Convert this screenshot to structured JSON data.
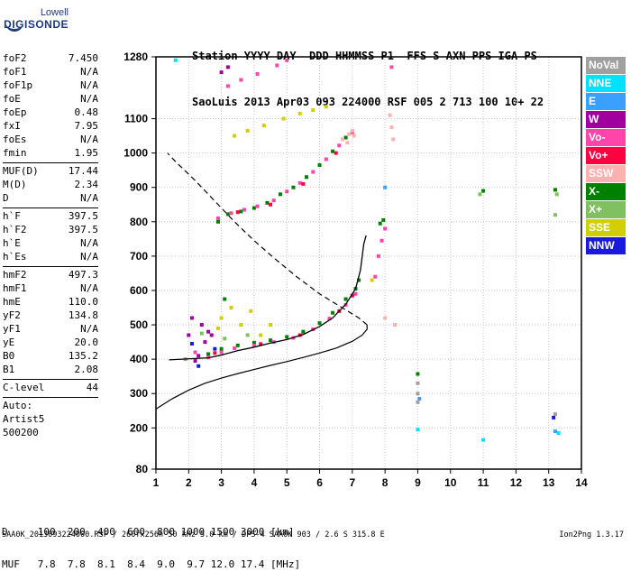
{
  "logo": {
    "line1": "Lowell",
    "line2": "DIGISONDE"
  },
  "header": {
    "line1": "Station YYYY DAY  DDD HHMMSS P1  FFS S AXN PPS IGA PS",
    "line2": "SaoLuis 2013 Apr03 093 224000 RSF 005 2 713 100 10+ 22"
  },
  "params": {
    "group1": [
      {
        "k": "foF2",
        "v": "7.450"
      },
      {
        "k": "foF1",
        "v": "N/A"
      },
      {
        "k": "foF1p",
        "v": "N/A"
      },
      {
        "k": "foE",
        "v": "N/A"
      },
      {
        "k": "foEp",
        "v": "0.48"
      },
      {
        "k": "fxI",
        "v": "7.95"
      },
      {
        "k": "foEs",
        "v": "N/A"
      },
      {
        "k": "fmin",
        "v": "1.95"
      }
    ],
    "group2": [
      {
        "k": "MUF(D)",
        "v": "17.44"
      },
      {
        "k": "M(D)",
        "v": "2.34"
      },
      {
        "k": "D",
        "v": "N/A"
      }
    ],
    "group3": [
      {
        "k": "h`F",
        "v": "397.5"
      },
      {
        "k": "h`F2",
        "v": "397.5"
      },
      {
        "k": "h`E",
        "v": "N/A"
      },
      {
        "k": "h`Es",
        "v": "N/A"
      }
    ],
    "group4": [
      {
        "k": "hmF2",
        "v": "497.3"
      },
      {
        "k": "hmF1",
        "v": "N/A"
      },
      {
        "k": "hmE",
        "v": "110.0"
      },
      {
        "k": "yF2",
        "v": "134.8"
      },
      {
        "k": "yF1",
        "v": "N/A"
      },
      {
        "k": "yE",
        "v": "20.0"
      },
      {
        "k": "B0",
        "v": "135.2"
      },
      {
        "k": "B1",
        "v": "2.08"
      }
    ],
    "group5": [
      {
        "k": "C-level",
        "v": "44"
      }
    ],
    "auto": [
      "Auto:",
      "Artist5",
      "500200"
    ]
  },
  "legend": [
    {
      "label": "NoVal",
      "color": "#a0a0a0"
    },
    {
      "label": "NNE",
      "color": "#00e0ff"
    },
    {
      "label": "E",
      "color": "#3aa0ff"
    },
    {
      "label": "W",
      "color": "#a000a0"
    },
    {
      "label": "Vo-",
      "color": "#ff44aa"
    },
    {
      "label": "Vo+",
      "color": "#ff0040"
    },
    {
      "label": "SSW",
      "color": "#ffb0b0"
    },
    {
      "label": "X-",
      "color": "#008000"
    },
    {
      "label": "X+",
      "color": "#80c060"
    },
    {
      "label": "SSE",
      "color": "#d0d000"
    },
    {
      "label": "NNW",
      "color": "#1a1adc"
    }
  ],
  "distance_table": {
    "line1": "D     100  200  400  600  800 1000 1500 3000 [km]",
    "line2": "MUF   7.8  7.8  8.1  8.4  9.0  9.7 12.0 17.4 [MHz]"
  },
  "footer": {
    "left": "SAA0K_2013093224000.RSF / 260fx256h 50 kHz 5.0 km / DPS-4 SAA0K 903 / 2.6 S 315.8 E",
    "right": "Ion2Png 1.3.17"
  },
  "chart_data": {
    "type": "scatter",
    "xlim": [
      1,
      14
    ],
    "ylim": [
      80,
      1280
    ],
    "x_ticks": [
      1,
      2,
      3,
      4,
      5,
      6,
      7,
      8,
      9,
      10,
      11,
      12,
      13,
      14
    ],
    "y_ticks": [
      80,
      200,
      300,
      400,
      500,
      600,
      700,
      800,
      900,
      1000,
      1100,
      1280
    ],
    "grid": true,
    "series": [
      {
        "name": "X-",
        "color": "#008000",
        "points": [
          [
            2.9,
            800
          ],
          [
            3.2,
            822
          ],
          [
            3.6,
            830
          ],
          [
            4.0,
            840
          ],
          [
            4.4,
            855
          ],
          [
            4.8,
            880
          ],
          [
            5.2,
            900
          ],
          [
            5.6,
            930
          ],
          [
            6.0,
            965
          ],
          [
            6.4,
            1005
          ],
          [
            6.8,
            1045
          ],
          [
            2.6,
            415
          ],
          [
            3.0,
            430
          ],
          [
            3.5,
            440
          ],
          [
            4.0,
            448
          ],
          [
            4.5,
            455
          ],
          [
            5.0,
            465
          ],
          [
            5.5,
            480
          ],
          [
            6.0,
            505
          ],
          [
            6.4,
            535
          ],
          [
            6.8,
            575
          ],
          [
            7.1,
            605
          ],
          [
            7.2,
            630
          ],
          [
            7.85,
            795
          ],
          [
            7.95,
            805
          ],
          [
            3.1,
            575
          ],
          [
            11.0,
            890
          ],
          [
            13.2,
            893
          ],
          [
            9.0,
            357
          ]
        ]
      },
      {
        "name": "Vo-",
        "color": "#ff44aa",
        "points": [
          [
            2.9,
            810
          ],
          [
            3.3,
            825
          ],
          [
            3.7,
            835
          ],
          [
            4.1,
            845
          ],
          [
            4.6,
            862
          ],
          [
            5.0,
            888
          ],
          [
            5.4,
            913
          ],
          [
            5.8,
            945
          ],
          [
            6.2,
            982
          ],
          [
            6.6,
            1022
          ],
          [
            7.0,
            1060
          ],
          [
            2.2,
            420
          ],
          [
            2.6,
            405
          ],
          [
            3.0,
            420
          ],
          [
            3.4,
            432
          ],
          [
            4.0,
            440
          ],
          [
            4.6,
            450
          ],
          [
            5.2,
            462
          ],
          [
            5.8,
            487
          ],
          [
            6.3,
            518
          ],
          [
            6.8,
            558
          ],
          [
            7.1,
            590
          ],
          [
            7.7,
            640
          ],
          [
            7.8,
            700
          ],
          [
            7.9,
            745
          ],
          [
            8.0,
            780
          ],
          [
            3.2,
            1195
          ],
          [
            3.6,
            1213
          ],
          [
            4.1,
            1230
          ],
          [
            4.7,
            1255
          ],
          [
            5.0,
            1270
          ],
          [
            8.2,
            1250
          ]
        ]
      },
      {
        "name": "Vo+",
        "color": "#ff0040",
        "points": [
          [
            3.5,
            828
          ],
          [
            4.5,
            850
          ],
          [
            5.5,
            910
          ],
          [
            6.5,
            1000
          ],
          [
            2.8,
            418
          ],
          [
            4.2,
            444
          ],
          [
            5.4,
            470
          ],
          [
            6.6,
            540
          ],
          [
            7.0,
            585
          ]
        ]
      },
      {
        "name": "SSW",
        "color": "#ffb0b0",
        "points": [
          [
            6.7,
            1040
          ],
          [
            6.9,
            1055
          ],
          [
            7.0,
            1065
          ],
          [
            7.05,
            1050
          ],
          [
            6.85,
            1030
          ],
          [
            8.15,
            1110
          ],
          [
            8.2,
            1075
          ],
          [
            8.25,
            1040
          ],
          [
            8.3,
            500
          ],
          [
            8.0,
            520
          ]
        ]
      },
      {
        "name": "W",
        "color": "#a000a0",
        "points": [
          [
            2.0,
            470
          ],
          [
            2.1,
            520
          ],
          [
            2.2,
            395
          ],
          [
            2.4,
            500
          ],
          [
            2.5,
            450
          ],
          [
            2.7,
            470
          ],
          [
            3.2,
            1250
          ],
          [
            3.0,
            1235
          ],
          [
            2.3,
            410
          ],
          [
            2.6,
            480
          ]
        ]
      },
      {
        "name": "SSE",
        "color": "#d0d000",
        "points": [
          [
            2.9,
            490
          ],
          [
            3.0,
            520
          ],
          [
            3.3,
            550
          ],
          [
            3.6,
            500
          ],
          [
            3.9,
            540
          ],
          [
            4.2,
            470
          ],
          [
            4.5,
            500
          ],
          [
            3.4,
            1050
          ],
          [
            3.8,
            1065
          ],
          [
            4.3,
            1080
          ],
          [
            4.9,
            1100
          ],
          [
            5.4,
            1115
          ],
          [
            5.8,
            1125
          ],
          [
            6.2,
            1135
          ],
          [
            7.6,
            630
          ]
        ]
      },
      {
        "name": "X+",
        "color": "#80c060",
        "points": [
          [
            2.4,
            475
          ],
          [
            3.1,
            460
          ],
          [
            3.8,
            470
          ],
          [
            10.9,
            880
          ],
          [
            13.2,
            820
          ],
          [
            13.25,
            880
          ]
        ]
      },
      {
        "name": "NNE",
        "color": "#00e0ff",
        "points": [
          [
            9.0,
            195
          ],
          [
            13.3,
            185
          ],
          [
            11.0,
            165
          ],
          [
            1.6,
            1270
          ]
        ]
      },
      {
        "name": "E",
        "color": "#3aa0ff",
        "points": [
          [
            13.2,
            190
          ],
          [
            8.0,
            900
          ],
          [
            9.05,
            285
          ]
        ]
      },
      {
        "name": "NoVal",
        "color": "#a0a0a0",
        "points": [
          [
            9.0,
            300
          ],
          [
            9.0,
            275
          ],
          [
            13.2,
            240
          ],
          [
            1.9,
            400
          ],
          [
            9.0,
            330
          ]
        ]
      },
      {
        "name": "NNW",
        "color": "#1a1adc",
        "points": [
          [
            2.1,
            445
          ],
          [
            2.3,
            380
          ],
          [
            2.8,
            430
          ],
          [
            13.15,
            230
          ]
        ]
      }
    ],
    "trace_virtual_height": [
      [
        1.4,
        398
      ],
      [
        1.8,
        400
      ],
      [
        2.2,
        402
      ],
      [
        2.6,
        404
      ],
      [
        3.0,
        412
      ],
      [
        3.5,
        425
      ],
      [
        4.0,
        435
      ],
      [
        4.5,
        447
      ],
      [
        5.0,
        457
      ],
      [
        5.5,
        472
      ],
      [
        6.0,
        495
      ],
      [
        6.4,
        520
      ],
      [
        6.8,
        560
      ],
      [
        7.1,
        605
      ],
      [
        7.25,
        660
      ],
      [
        7.35,
        735
      ],
      [
        7.42,
        760
      ]
    ],
    "true_height_profile": [
      [
        1.0,
        255
      ],
      [
        1.5,
        285
      ],
      [
        2.0,
        310
      ],
      [
        2.5,
        330
      ],
      [
        3.0,
        345
      ],
      [
        3.5,
        358
      ],
      [
        4.0,
        370
      ],
      [
        4.5,
        382
      ],
      [
        5.0,
        393
      ],
      [
        5.5,
        405
      ],
      [
        6.0,
        418
      ],
      [
        6.5,
        432
      ],
      [
        7.0,
        452
      ],
      [
        7.3,
        470
      ],
      [
        7.45,
        487
      ],
      [
        7.45,
        500
      ],
      [
        7.2,
        520
      ],
      [
        6.6,
        555
      ],
      [
        6.0,
        590
      ],
      [
        5.3,
        640
      ],
      [
        4.6,
        695
      ],
      [
        4.0,
        745
      ],
      [
        3.4,
        800
      ],
      [
        2.8,
        860
      ],
      [
        2.2,
        920
      ],
      [
        1.6,
        975
      ],
      [
        1.35,
        1000
      ]
    ]
  }
}
